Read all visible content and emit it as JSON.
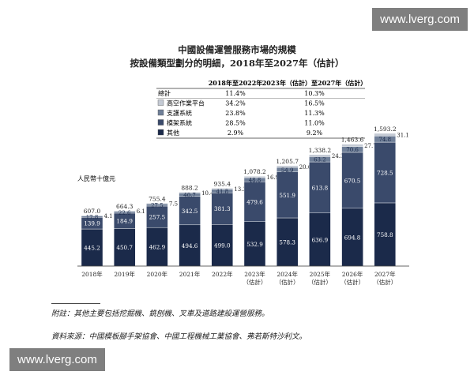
{
  "watermark": "www.lverg.com",
  "chart_data": {
    "type": "bar",
    "stacked": true,
    "title": "中國設備運營服務市場的規模",
    "subtitle": "按設備類型劃分的明細，2018年至2027年（估計）",
    "ylabel": "人民幣十億元",
    "categories": [
      "2018年",
      "2019年",
      "2020年",
      "2021年",
      "2022年",
      "2023年\n（估計）",
      "2024年\n（估計）",
      "2025年\n（估計）",
      "2026年\n（估計）",
      "2027年\n（估計）"
    ],
    "totals": [
      "607.0",
      "664.3",
      "755.4",
      "888.2",
      "935.4",
      "1,078.2",
      "1,205.7",
      "1,338.2",
      "1,463.6",
      "1,593.2"
    ],
    "series": [
      {
        "name": "其他",
        "color": "#1b2a4a",
        "values": [
          445.2,
          450.7,
          462.9,
          494.6,
          499.0,
          532.9,
          578.3,
          636.9,
          694.8,
          758.8
        ]
      },
      {
        "name": "模架系統",
        "color": "#3a4a6b",
        "values": [
          139.9,
          184.9,
          257.5,
          342.5,
          381.3,
          479.6,
          551.9,
          613.8,
          670.5,
          728.5
        ]
      },
      {
        "name": "支護系統",
        "color": "#6f7f98",
        "values": [
          17.8,
          22.6,
          27.5,
          40.7,
          41.8,
          48.8,
          54.9,
          63.2,
          70.6,
          74.8
        ]
      },
      {
        "name": "高空作業平台",
        "color": "#c4cad4",
        "values": [
          4.1,
          6.1,
          7.5,
          10.4,
          13.3,
          16.9,
          20.6,
          24.3,
          27.7,
          31.1
        ]
      }
    ],
    "legend_table": {
      "headers": [
        "2018年至2022年",
        "2023年（估計）至2027年（估計）"
      ],
      "rows": [
        {
          "label": "總計",
          "cagr1": "11.4%",
          "cagr2": "10.3%"
        },
        {
          "label": "高空作業平台",
          "cagr1": "34.2%",
          "cagr2": "16.5%"
        },
        {
          "label": "支護系統",
          "cagr1": "23.8%",
          "cagr2": "11.3%"
        },
        {
          "label": "模架系統",
          "cagr1": "28.5%",
          "cagr2": "11.0%"
        },
        {
          "label": "其他",
          "cagr1": "2.9%",
          "cagr2": "9.2%"
        }
      ]
    },
    "ylim": [
      0,
      1650
    ],
    "grid": false,
    "legend": "top-left"
  },
  "footnote": "附註：其他主要包括挖掘機、銑刨機、叉車及道路建設運營服務。",
  "source": "資料來源：中國模板腳手架協會、中國工程機械工業協會、弗若斯特沙利文。"
}
